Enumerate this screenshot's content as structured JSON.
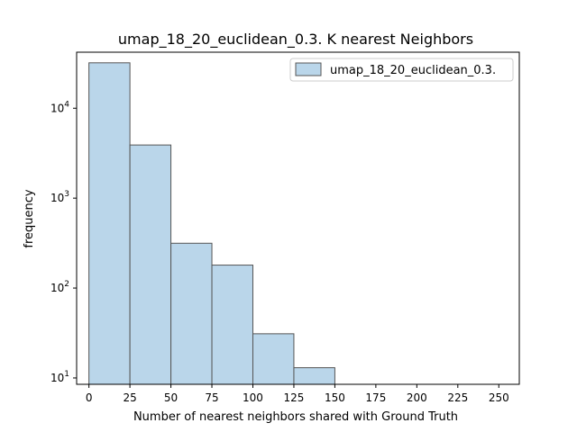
{
  "chart_data": {
    "type": "bar",
    "title": "umap_18_20_euclidean_0.3. K nearest Neighbors",
    "xlabel": "Number of nearest neighbors shared with Ground Truth",
    "ylabel": "frequency",
    "yscale": "log",
    "xlim": [
      -7.5,
      262.5
    ],
    "ylim": [
      8.5,
      42000
    ],
    "x_ticks": [
      0,
      25,
      50,
      75,
      100,
      125,
      150,
      175,
      200,
      225,
      250
    ],
    "y_ticks": [
      {
        "value": 10,
        "base": "10",
        "exp": "1"
      },
      {
        "value": 100,
        "base": "10",
        "exp": "2"
      },
      {
        "value": 1000,
        "base": "10",
        "exp": "3"
      },
      {
        "value": 10000,
        "base": "10",
        "exp": "4"
      }
    ],
    "bin_width": 25,
    "bin_starts": [
      0,
      25,
      50,
      75,
      100,
      125
    ],
    "series": [
      {
        "name": "umap_18_20_euclidean_0.3.",
        "values": [
          32000,
          3900,
          315,
          180,
          31,
          13
        ],
        "color": "#bad6ea",
        "edgecolor": "#555555"
      }
    ],
    "grid": false,
    "legend_position": "top-right"
  }
}
